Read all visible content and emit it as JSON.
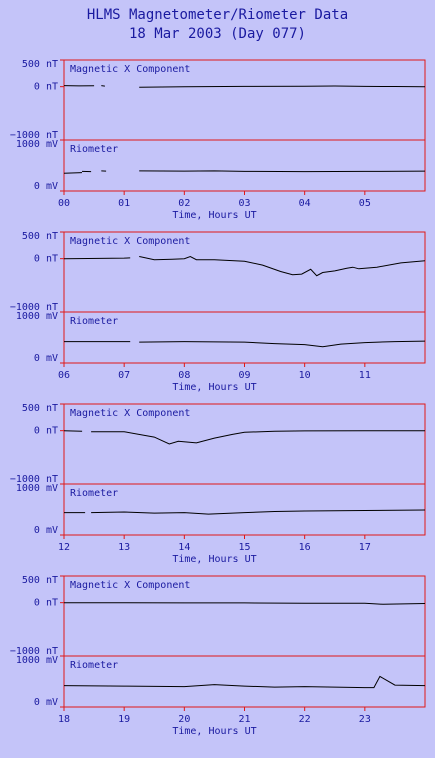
{
  "title": "HLMS Magnetometer/Riometer Data",
  "subtitle": "18 Mar 2003 (Day 077)",
  "colors": {
    "background": "#c4c4f9",
    "frame": "#e01818",
    "text": "#1a1aa0",
    "trace": "#000000"
  },
  "chart_data": [
    {
      "type": "line",
      "xlabel": "Time, Hours UT",
      "xlim": [
        0,
        6
      ],
      "x_ticks": [
        "00",
        "01",
        "02",
        "03",
        "04",
        "05"
      ],
      "magnetometer": {
        "label": "Magnetic X Component",
        "ylim": [
          -1000,
          500
        ],
        "y_ticks": [
          "500 nT",
          "0 nT",
          "−1000 nT"
        ],
        "segments": [
          {
            "x": [
              0.0,
              0.25,
              0.5
            ],
            "y": [
              20,
              15,
              18
            ]
          },
          {
            "x": [
              0.62,
              0.68
            ],
            "y": [
              20,
              10
            ]
          },
          {
            "x": [
              1.25,
              2.0,
              3.0,
              4.0,
              4.5,
              5.0,
              5.5,
              6.0
            ],
            "y": [
              -10,
              0,
              5,
              8,
              12,
              5,
              3,
              0
            ]
          }
        ]
      },
      "riometer": {
        "label": "Riometer",
        "ylim": [
          0,
          1000
        ],
        "y_ticks": [
          "1000 mV",
          "0 mV"
        ],
        "segments": [
          {
            "x": [
              0.0,
              0.3
            ],
            "y": [
              350,
              360
            ]
          },
          {
            "x": [
              0.3,
              0.45
            ],
            "y": [
              385,
              380
            ]
          },
          {
            "x": [
              0.62,
              0.7
            ],
            "y": [
              395,
              390
            ]
          },
          {
            "x": [
              1.25,
              2.0,
              2.5,
              3.0,
              4.0,
              5.0,
              6.0
            ],
            "y": [
              395,
              390,
              395,
              385,
              380,
              385,
              390
            ]
          }
        ]
      }
    },
    {
      "type": "line",
      "xlabel": "Time, Hours UT",
      "xlim": [
        6,
        12
      ],
      "x_ticks": [
        "06",
        "07",
        "08",
        "09",
        "10",
        "11"
      ],
      "magnetometer": {
        "label": "Magnetic X Component",
        "ylim": [
          -1000,
          500
        ],
        "y_ticks": [
          "500 nT",
          "0 nT",
          "−1000 nT"
        ],
        "segments": [
          {
            "x": [
              6.0,
              7.0,
              7.1
            ],
            "y": [
              0,
              10,
              15
            ]
          },
          {
            "x": [
              7.25,
              7.3,
              7.5,
              7.8,
              8.0,
              8.1,
              8.2,
              8.5,
              9.0,
              9.3,
              9.6,
              9.8,
              9.95,
              10.1,
              10.2,
              10.3,
              10.5,
              10.7,
              10.8,
              10.9,
              11.2,
              11.6,
              12.0
            ],
            "y": [
              40,
              30,
              -20,
              -10,
              0,
              40,
              -20,
              -20,
              -50,
              -120,
              -240,
              -300,
              -290,
              -200,
              -320,
              -260,
              -230,
              -180,
              -160,
              -190,
              -160,
              -80,
              -40
            ]
          }
        ]
      },
      "riometer": {
        "label": "Riometer",
        "ylim": [
          0,
          1000
        ],
        "y_ticks": [
          "1000 mV",
          "0 mV"
        ],
        "segments": [
          {
            "x": [
              6.0,
              7.1
            ],
            "y": [
              420,
              420
            ]
          },
          {
            "x": [
              7.25,
              8.0,
              9.0,
              9.5,
              10.0,
              10.3,
              10.6,
              11.0,
              11.5,
              12.0
            ],
            "y": [
              410,
              420,
              410,
              380,
              360,
              320,
              370,
              400,
              420,
              430
            ]
          }
        ]
      }
    },
    {
      "type": "line",
      "xlabel": "Time, Hours UT",
      "xlim": [
        12,
        18
      ],
      "x_ticks": [
        "12",
        "13",
        "14",
        "15",
        "16",
        "17"
      ],
      "magnetometer": {
        "label": "Magnetic X Component",
        "ylim": [
          -1000,
          500
        ],
        "y_ticks": [
          "500 nT",
          "0 nT",
          "−1000 nT"
        ],
        "segments": [
          {
            "x": [
              12.0,
              12.3
            ],
            "y": [
              0,
              -10
            ]
          },
          {
            "x": [
              12.45,
              13.0,
              13.5,
              13.75,
              13.9,
              14.2,
              14.5,
              14.8,
              15.0,
              15.5,
              16.0,
              17.0,
              18.0
            ],
            "y": [
              -20,
              -20,
              -120,
              -250,
              -200,
              -230,
              -140,
              -70,
              -30,
              -10,
              -5,
              0,
              0
            ]
          }
        ]
      },
      "riometer": {
        "label": "Riometer",
        "ylim": [
          0,
          1000
        ],
        "y_ticks": [
          "1000 mV",
          "0 mV"
        ],
        "segments": [
          {
            "x": [
              12.0,
              12.35
            ],
            "y": [
              440,
              440
            ]
          },
          {
            "x": [
              12.45,
              13.0,
              13.5,
              14.0,
              14.4,
              15.0,
              15.5,
              16.0,
              17.0,
              18.0
            ],
            "y": [
              440,
              450,
              430,
              440,
              410,
              440,
              460,
              470,
              480,
              490
            ]
          }
        ]
      }
    },
    {
      "type": "line",
      "xlabel": "Time, Hours UT",
      "xlim": [
        18,
        24
      ],
      "x_ticks": [
        "18",
        "19",
        "20",
        "21",
        "22",
        "23"
      ],
      "magnetometer": {
        "label": "Magnetic X Component",
        "ylim": [
          -1000,
          500
        ],
        "y_ticks": [
          "500 nT",
          "0 nT",
          "−1000 nT"
        ],
        "segments": [
          {
            "x": [
              18.0,
              19.0,
              20.0,
              21.0,
              22.0,
              23.0,
              23.3,
              24.0
            ],
            "y": [
              0,
              0,
              -5,
              -5,
              -10,
              -10,
              -30,
              -15
            ]
          }
        ]
      },
      "riometer": {
        "label": "Riometer",
        "ylim": [
          0,
          1000
        ],
        "y_ticks": [
          "1000 mV",
          "0 mV"
        ],
        "segments": [
          {
            "x": [
              18.0,
              19.0,
              20.0,
              20.5,
              21.0,
              21.5,
              22.0,
              22.5,
              23.0,
              23.15,
              23.25,
              23.5,
              24.0
            ],
            "y": [
              420,
              410,
              400,
              440,
              410,
              390,
              400,
              390,
              380,
              380,
              600,
              430,
              420
            ]
          }
        ]
      }
    }
  ]
}
